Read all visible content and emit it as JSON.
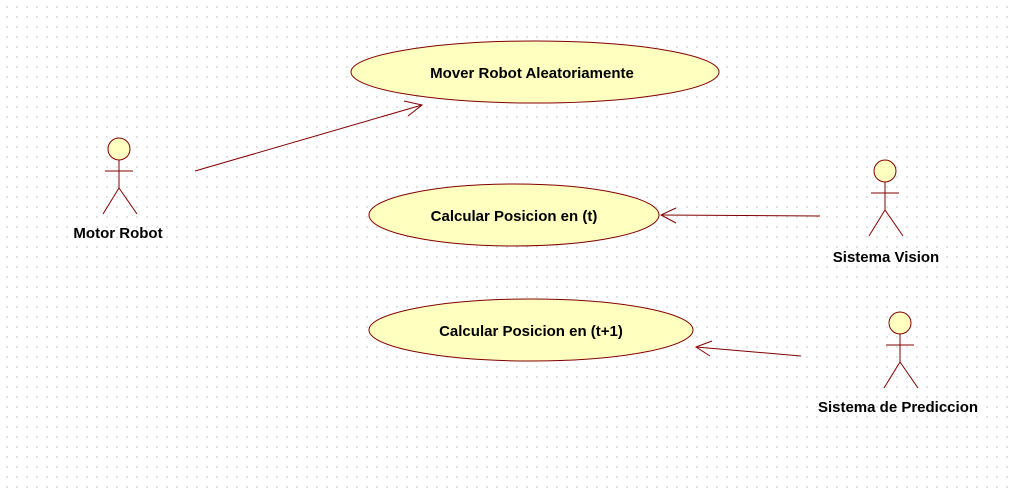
{
  "colors": {
    "usecase_fill": "#ffffc0",
    "line": "#800000",
    "text": "#000000",
    "grid_dot": "#c8c8c8"
  },
  "use_cases": [
    {
      "label": "Mover Robot Aleatoriamente"
    },
    {
      "label": "Calcular Posicion en (t)"
    },
    {
      "label": "Calcular Posicion en (t+1)"
    }
  ],
  "actors": [
    {
      "label": "Motor Robot",
      "icon": "stick-figure-actor"
    },
    {
      "label": "Sistema Vision",
      "icon": "stick-figure-actor"
    },
    {
      "label": "Sistema de Prediccion",
      "icon": "stick-figure-actor"
    }
  ],
  "associations": [
    {
      "from": "Motor Robot",
      "to": "Mover Robot Aleatoriamente",
      "arrow": "open-arrowhead"
    },
    {
      "from": "Sistema Vision",
      "to": "Calcular Posicion en (t)",
      "arrow": "open-arrowhead"
    },
    {
      "from": "Sistema de Prediccion",
      "to": "Calcular Posicion en (t+1)",
      "arrow": "open-arrowhead"
    }
  ]
}
